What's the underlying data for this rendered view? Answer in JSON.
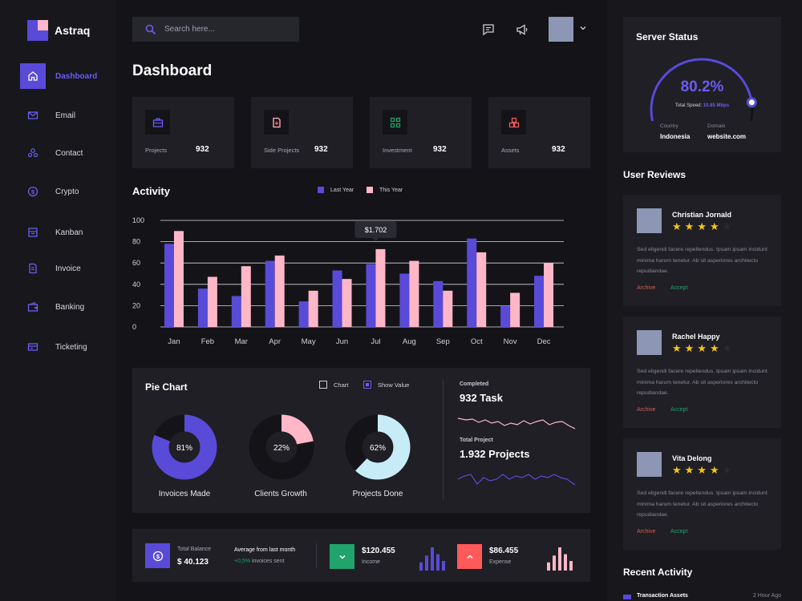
{
  "app": {
    "name": "Astraq"
  },
  "sidebar": {
    "items": [
      {
        "label": "Dashboard",
        "icon": "home-icon",
        "active": true
      },
      {
        "label": "Email",
        "icon": "mail-icon"
      },
      {
        "label": "Contact",
        "icon": "contact-icon"
      },
      {
        "label": "Crypto",
        "icon": "coin-icon"
      },
      {
        "label": "Kanban",
        "icon": "kanban-icon"
      },
      {
        "label": "Invoice",
        "icon": "invoice-icon"
      },
      {
        "label": "Banking",
        "icon": "wallet-icon"
      },
      {
        "label": "Ticketing",
        "icon": "ticket-icon"
      }
    ]
  },
  "header": {
    "search_placeholder": "Search here..."
  },
  "page": {
    "title": "Dashboard"
  },
  "stats": [
    {
      "label": "Projects",
      "value": "932",
      "icon": "briefcase-icon",
      "color": "#6b5cf0"
    },
    {
      "label": "Side Projects",
      "value": "932",
      "icon": "file-add-icon",
      "color": "#ffb7c8"
    },
    {
      "label": "Investment",
      "value": "932",
      "icon": "grid-icon",
      "color": "#20a46b"
    },
    {
      "label": "Assets",
      "value": "932",
      "icon": "cubes-icon",
      "color": "#ff5a5a"
    }
  ],
  "activity": {
    "title": "Activity",
    "legend": {
      "last_year": "Last Year",
      "this_year": "This Year"
    },
    "tooltip": "$1.702"
  },
  "chart_data": {
    "type": "bar",
    "categories": [
      "Jan",
      "Feb",
      "Mar",
      "Apr",
      "May",
      "Jun",
      "Jul",
      "Aug",
      "Sep",
      "Oct",
      "Nov",
      "Dec"
    ],
    "series": [
      {
        "name": "Last Year",
        "color": "#5a4ad8",
        "values": [
          78,
          36,
          29,
          62,
          24,
          53,
          59,
          50,
          43,
          83,
          20,
          48
        ]
      },
      {
        "name": "This Year",
        "color": "#ffb7c8",
        "values": [
          90,
          47,
          57,
          67,
          34,
          45,
          73,
          62,
          34,
          70,
          32,
          60
        ]
      }
    ],
    "yticks": [
      0,
      20,
      40,
      60,
      80,
      100
    ],
    "ylim": [
      0,
      100
    ],
    "grid": true,
    "legend_position": "top"
  },
  "pie": {
    "title": "Pie Chart",
    "chart_label": "Chart",
    "show_value_label": "Show Value",
    "chart_checked": false,
    "show_value_checked": true,
    "donuts": [
      {
        "value": 81,
        "text": "81%",
        "label": "Invoices Made",
        "color": "#5a4ad8"
      },
      {
        "value": 22,
        "text": "22%",
        "label": "Clients Growth",
        "color": "#ffb7c8"
      },
      {
        "value": 62,
        "text": "62%",
        "label": "Projects Done",
        "color": "#c7ecf8"
      }
    ],
    "completed_label": "Completed",
    "completed_value": "932 Task",
    "total_label": "Total  Project",
    "total_value": "1.932 Projects"
  },
  "balance": {
    "total_label": "Total Balance",
    "total_value": "$ 40.123",
    "avg_label": "Average from last month",
    "avg_change": "+0,5%",
    "avg_suffix": "invoices sent",
    "income_value": "$120.455",
    "income_label": "Income",
    "expense_value": "$86.455",
    "expense_label": "Expense",
    "income_bars": [
      0.3,
      0.55,
      0.85,
      0.6,
      0.35
    ],
    "expense_bars": [
      0.3,
      0.55,
      0.85,
      0.6,
      0.35
    ]
  },
  "server": {
    "title": "Server Status",
    "value": "80.2%",
    "percent": 80.2,
    "speed_label": "Total Speed:",
    "speed_value": "10.85 Mbps",
    "country_label": "Country",
    "country_value": "Indonesia",
    "domain_label": "Domain",
    "domain_value": "website.com"
  },
  "reviews": {
    "title": "User Reviews",
    "archive_label": "Archive",
    "accept_label": "Accept",
    "items": [
      {
        "name": "Christian Jornald",
        "stars": 4,
        "text": "Sed eligendi facere repellendus. Ipsam ipsam incidunt minima harum tenetur. Ab sit asperiores architecto repudiandae."
      },
      {
        "name": "Rachel Happy",
        "stars": 4,
        "text": "Sed eligendi facere repellendus. Ipsam ipsam incidunt minima harum tenetur. Ab sit asperiores architecto repudiandae."
      },
      {
        "name": "Vita Delong",
        "stars": 4,
        "text": "Sed eligendi facere repellendus. Ipsam ipsam incidunt minima harum tenetur. Ab sit asperiores architecto repudiandae."
      }
    ]
  },
  "recent": {
    "title": "Recent Activity",
    "items": [
      {
        "label": "Transaction Assets",
        "time": "2 Hour Ago"
      }
    ]
  }
}
